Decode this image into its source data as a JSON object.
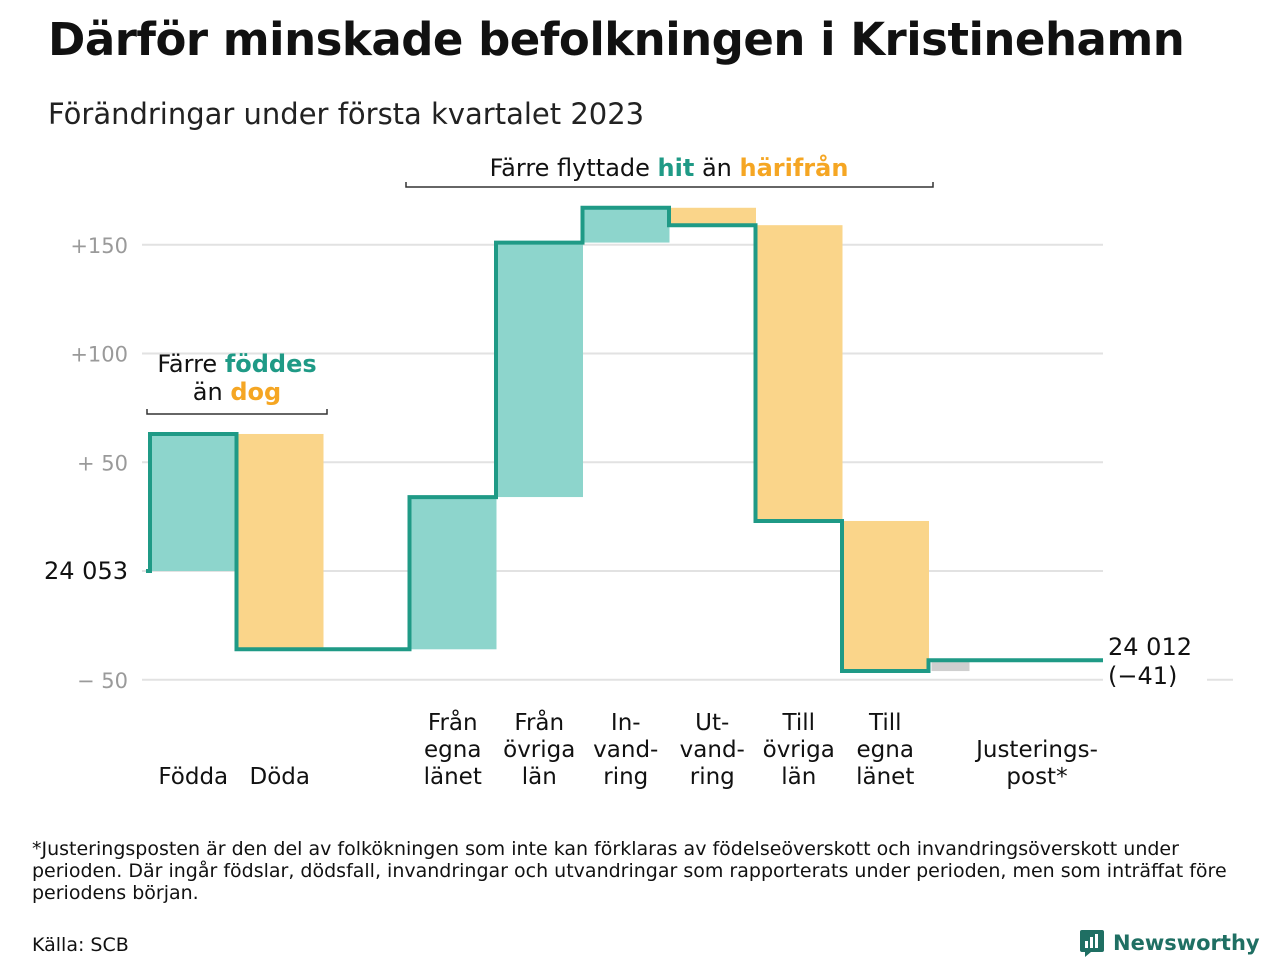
{
  "header": {
    "title": "Därför minskade befolkningen i Kristinehamn",
    "subtitle": "Förändringar under första kvartalet 2023"
  },
  "colors": {
    "inflow": "#8dd5cc",
    "outflow": "#fad58a",
    "adjustment": "#cfcfcf",
    "line": "#1f9a86",
    "accent_teal": "#1f9a86",
    "accent_orange": "#f5a623",
    "grid": "#e2e2e2",
    "tick_text": "#9a9a9a"
  },
  "annotations": {
    "births": {
      "line1_prefix": "Färre ",
      "line1_highlight": "föddes",
      "line2_prefix": "än ",
      "line2_highlight": "dog"
    },
    "moves": {
      "prefix": "Färre flyttade ",
      "highlight1": "hit",
      "middle": " än ",
      "highlight2": "härifrån"
    }
  },
  "chart_data": {
    "type": "waterfall",
    "start_label": "24 053",
    "start_value": 24053,
    "end_label_line1": "24 012",
    "end_label_line2": "(−41)",
    "end_value": 24012,
    "net_change": -41,
    "ylim": [
      -55,
      170
    ],
    "yticks": [
      {
        "value": -50,
        "label": "− 50"
      },
      {
        "value": 0,
        "label": "24 053"
      },
      {
        "value": 50,
        "label": "+ 50"
      },
      {
        "value": 100,
        "label": "+100"
      },
      {
        "value": 150,
        "label": "+150"
      }
    ],
    "grid": true,
    "steps": [
      {
        "label": [
          "Födda"
        ],
        "change": 63,
        "kind": "inflow"
      },
      {
        "label": [
          "Döda"
        ],
        "change": -99,
        "kind": "outflow"
      },
      {
        "label": [
          ""
        ],
        "change": 0,
        "kind": "gap"
      },
      {
        "label": [
          "Från",
          "egna",
          "länet"
        ],
        "change": 70,
        "kind": "inflow"
      },
      {
        "label": [
          "Från",
          "övriga",
          "län"
        ],
        "change": 117,
        "kind": "inflow"
      },
      {
        "label": [
          "In-",
          "vand-",
          "ring"
        ],
        "change": 16,
        "kind": "inflow"
      },
      {
        "label": [
          "Ut-",
          "vand-",
          "ring"
        ],
        "change": -8,
        "kind": "outflow"
      },
      {
        "label": [
          "Till",
          "övriga",
          "län"
        ],
        "change": -136,
        "kind": "outflow"
      },
      {
        "label": [
          "Till",
          "egna",
          "länet"
        ],
        "change": -69,
        "kind": "outflow"
      },
      {
        "label": [
          "Justerings-",
          "post*"
        ],
        "change": 5,
        "kind": "adjustment"
      }
    ]
  },
  "footer": {
    "footnote": "*Justeringsposten är den del av folkökningen som inte kan förklaras av födelseöverskott och invandringsöverskott under perioden. Där ingår födslar, dödsfall, invandringar och utvandringar som rapporterats under perioden, men som inträffat före periodens början.",
    "source": "Källa: SCB",
    "brand": "Newsworthy"
  }
}
